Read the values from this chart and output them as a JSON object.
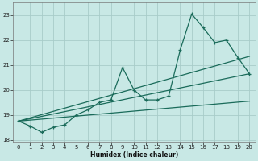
{
  "xlabel": "Humidex (Indice chaleur)",
  "bg_color": "#c8e8e5",
  "grid_color": "#a8ccc9",
  "line_color": "#1a6b5a",
  "x_min": -0.5,
  "x_max": 20.5,
  "y_min": 17.9,
  "y_max": 23.5,
  "yticks": [
    18,
    19,
    20,
    21,
    22,
    23
  ],
  "xticks": [
    0,
    1,
    2,
    3,
    4,
    5,
    6,
    7,
    8,
    9,
    10,
    11,
    12,
    13,
    14,
    15,
    16,
    17,
    18,
    19,
    20
  ],
  "main_x": [
    0,
    1,
    2,
    3,
    4,
    5,
    6,
    7,
    8,
    9,
    10,
    11,
    12,
    13,
    14,
    15,
    16,
    17,
    18,
    19,
    20
  ],
  "main_y": [
    18.75,
    18.55,
    18.3,
    18.5,
    18.6,
    19.0,
    19.2,
    19.5,
    19.6,
    20.9,
    20.0,
    19.6,
    19.6,
    19.75,
    21.6,
    23.05,
    22.5,
    21.9,
    22.0,
    21.3,
    20.65
  ],
  "trend1_x": [
    0,
    20
  ],
  "trend1_y": [
    18.75,
    21.35
  ],
  "trend2_x": [
    0,
    20
  ],
  "trend2_y": [
    18.75,
    20.65
  ],
  "trend3_x": [
    0,
    20
  ],
  "trend3_y": [
    18.75,
    19.55
  ]
}
